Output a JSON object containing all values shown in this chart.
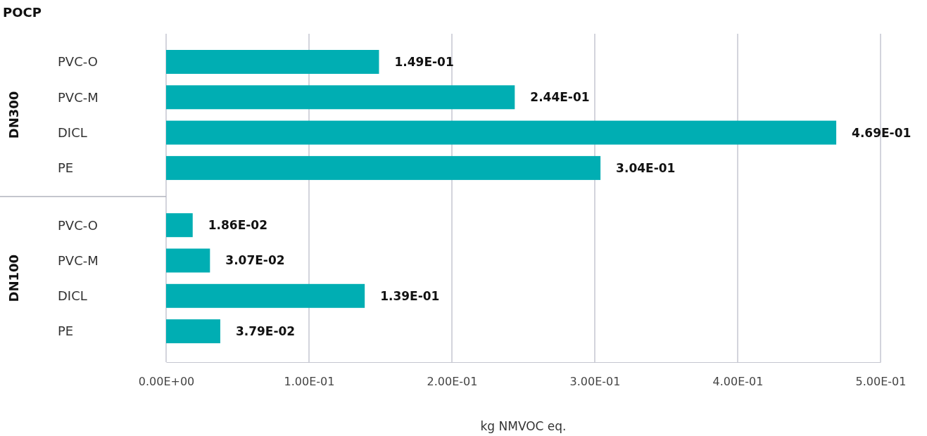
{
  "chart_data": {
    "type": "bar",
    "orientation": "horizontal",
    "title": "POCP",
    "xlabel": "kg NMVOC eq.",
    "categories": [
      "PVC-O",
      "PVC-M",
      "DICL",
      "PE",
      "PVC-O",
      "PVC-M",
      "DICL",
      "PE"
    ],
    "annotations": [
      "DN300",
      "DN100"
    ],
    "values": [
      0.149,
      0.244,
      0.469,
      0.304,
      0.0186,
      0.0307,
      0.139,
      0.0379
    ],
    "value_labels": [
      "1.49E-01",
      "2.44E-01",
      "4.69E-01",
      "3.04E-01",
      "1.86E-02",
      "3.07E-02",
      "1.39E-01",
      "3.79E-02"
    ],
    "color": "#00aeb3",
    "xlim": [
      0,
      0.5
    ],
    "xticks": [
      {
        "value": 0,
        "label": "0.00E+00"
      },
      {
        "value": 0.1,
        "label": "1.00E-01"
      },
      {
        "value": 0.2,
        "label": "2.00E-01"
      },
      {
        "value": 0.3,
        "label": "3.00E-01"
      },
      {
        "value": 0.4,
        "label": "4.00E-01"
      },
      {
        "value": 0.5,
        "label": "5.00E-01"
      }
    ],
    "grid": "x"
  }
}
